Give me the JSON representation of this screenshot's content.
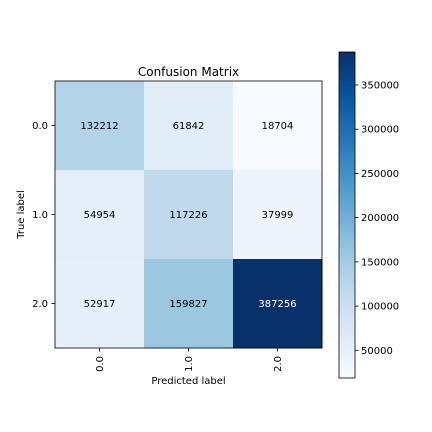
{
  "chart_data": {
    "type": "heatmap",
    "title": "Confusion Matrix",
    "xlabel": "Predicted label",
    "ylabel": "True label",
    "x_categories": [
      "0.0",
      "1.0",
      "2.0"
    ],
    "y_categories": [
      "0.0",
      "1.0",
      "2.0"
    ],
    "values": [
      [
        132212,
        61842,
        18704
      ],
      [
        54954,
        117226,
        37999
      ],
      [
        52917,
        159827,
        387256
      ]
    ],
    "colormap": "Blues",
    "color_range": [
      18704,
      387256
    ],
    "colorbar_ticks": [
      50000,
      100000,
      150000,
      200000,
      250000,
      300000,
      350000
    ],
    "text_colors": {
      "light_cell": "#000000",
      "dark_cell": "#ffffff"
    }
  }
}
